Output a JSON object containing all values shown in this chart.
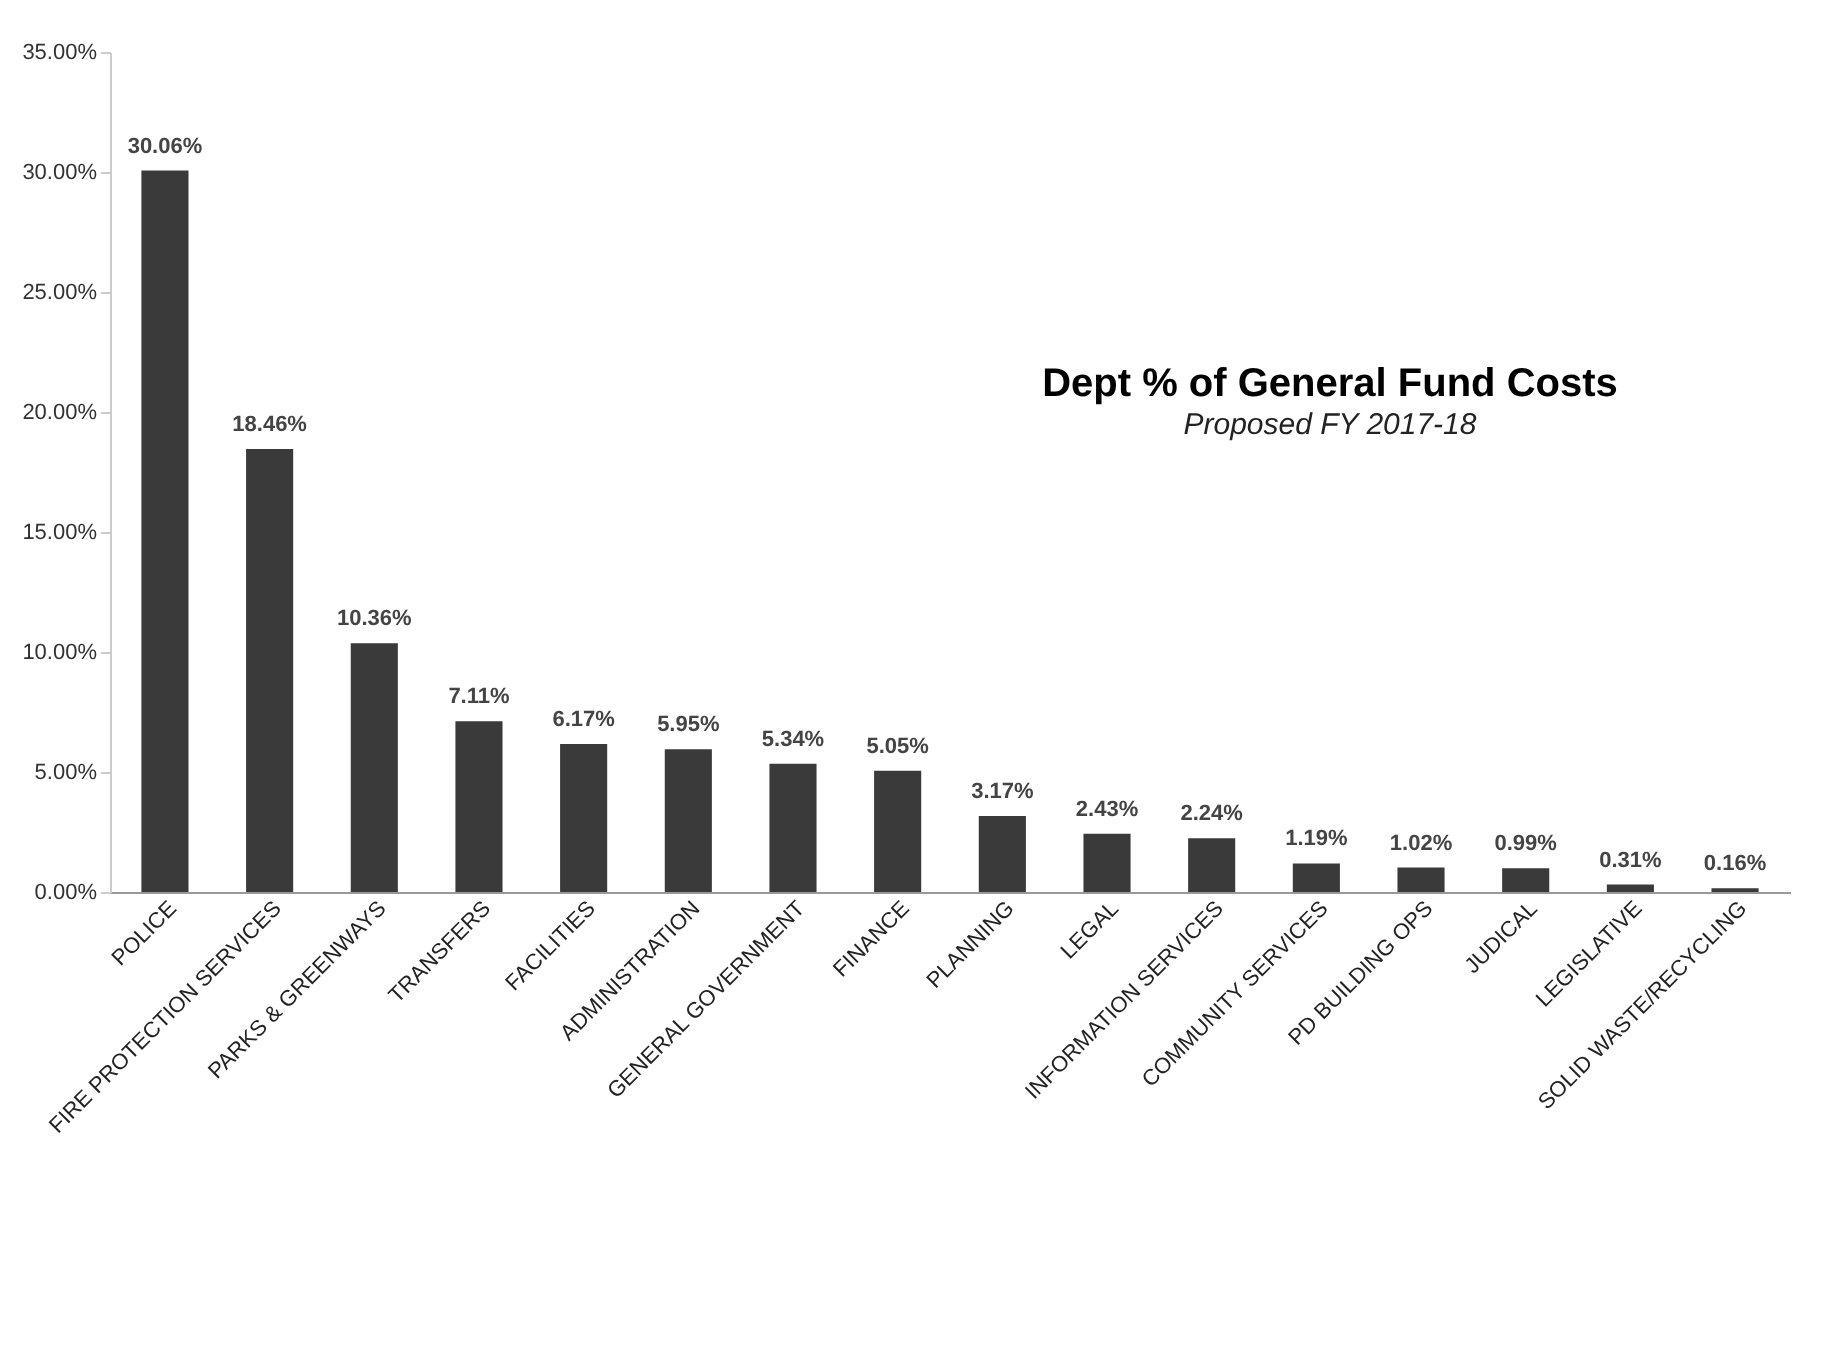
{
  "chart_data": {
    "type": "bar",
    "title": "Dept % of General Fund Costs",
    "subtitle": "Proposed FY 2017-18",
    "categories": [
      "POLICE",
      "FIRE PROTECTION SERVICES",
      "PARKS & GREENWAYS",
      "TRANSFERS",
      "FACILITIES",
      "ADMINISTRATION",
      "GENERAL GOVERNMENT",
      "FINANCE",
      "PLANNING",
      "LEGAL",
      "INFORMATION SERVICES",
      "COMMUNITY SERVICES",
      "PD BUILDING OPS",
      "JUDICAL",
      "LEGISLATIVE",
      "SOLID WASTE/RECYCLING"
    ],
    "values": [
      30.06,
      18.46,
      10.36,
      7.11,
      6.17,
      5.95,
      5.34,
      5.05,
      3.17,
      2.43,
      2.24,
      1.19,
      1.02,
      0.99,
      0.31,
      0.16
    ],
    "value_labels": [
      "30.06%",
      "18.46%",
      "10.36%",
      "7.11%",
      "6.17%",
      "5.95%",
      "5.34%",
      "5.05%",
      "3.17%",
      "2.43%",
      "2.24%",
      "1.19%",
      "1.02%",
      "0.99%",
      "0.31%",
      "0.16%"
    ],
    "color": "#3a3a3a",
    "ylim": [
      0,
      35
    ],
    "yticks": [
      {
        "value": 0,
        "label": "0.00%"
      },
      {
        "value": 5,
        "label": "5.00%"
      },
      {
        "value": 10,
        "label": "10.00%"
      },
      {
        "value": 15,
        "label": "15.00%"
      },
      {
        "value": 20,
        "label": "20.00%"
      },
      {
        "value": 25,
        "label": "25.00%"
      },
      {
        "value": 30,
        "label": "30.00%"
      },
      {
        "value": 35,
        "label": "35.00%"
      }
    ],
    "grid": false
  }
}
